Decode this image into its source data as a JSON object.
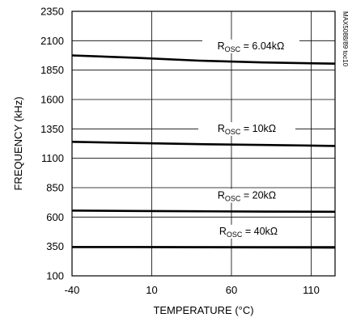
{
  "chart_data": {
    "type": "line",
    "xlabel": "TEMPERATURE (°C)",
    "ylabel": "FREQUENCY (kHz)",
    "xlim": [
      -40,
      125
    ],
    "ylim": [
      100,
      2350
    ],
    "x_ticks": [
      "-40",
      "10",
      "60",
      "110"
    ],
    "y_ticks": [
      "2350",
      "2100",
      "1850",
      "1600",
      "1350",
      "1100",
      "850",
      "600",
      "350",
      "100"
    ],
    "x_tick_values": [
      -40,
      10,
      60,
      110
    ],
    "y_tick_values": [
      2350,
      2100,
      1850,
      1600,
      1350,
      1100,
      850,
      600,
      350,
      100
    ],
    "grid": true,
    "legend": "none",
    "side_note": "MAX5088/89 toc10",
    "series": [
      {
        "name_main": "R",
        "name_sub": "OSC",
        "name_rest": " = 6.04kΩ",
        "x": [
          -40,
          0,
          40,
          80,
          125
        ],
        "y": [
          1975,
          1955,
          1930,
          1915,
          1905
        ]
      },
      {
        "name_main": "R",
        "name_sub": "OSC",
        "name_rest": " = 10kΩ",
        "x": [
          -40,
          0,
          40,
          80,
          125
        ],
        "y": [
          1240,
          1230,
          1220,
          1213,
          1205
        ]
      },
      {
        "name_main": "R",
        "name_sub": "OSC",
        "name_rest": " = 20kΩ",
        "x": [
          -40,
          0,
          40,
          80,
          125
        ],
        "y": [
          655,
          652,
          649,
          646,
          645
        ]
      },
      {
        "name_main": "R",
        "name_sub": "OSC",
        "name_rest": " = 40kΩ",
        "x": [
          -40,
          0,
          40,
          80,
          125
        ],
        "y": [
          345,
          345,
          343,
          342,
          340
        ]
      }
    ]
  }
}
